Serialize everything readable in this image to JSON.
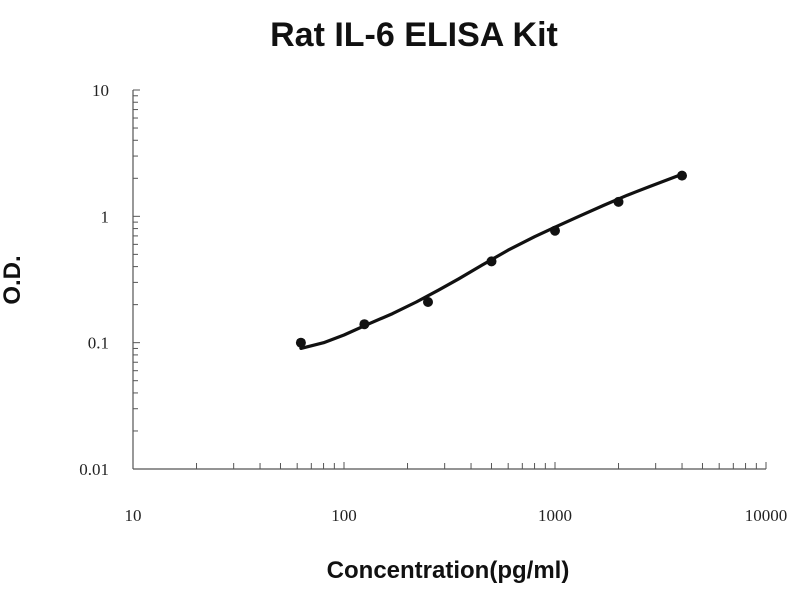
{
  "chart_data": {
    "type": "scatter",
    "title": "Rat IL-6 ELISA Kit",
    "xlabel": "Concentration(pg/ml)",
    "ylabel": "O.D.",
    "x_scale": "log",
    "y_scale": "log",
    "xlim": [
      10,
      10000
    ],
    "ylim": [
      0.01,
      10
    ],
    "x_ticks": [
      "10",
      "100",
      "1000",
      "10000"
    ],
    "y_ticks": [
      "10",
      "1",
      "0.1",
      "0.01"
    ],
    "grid": false,
    "legend": "none",
    "series": [
      {
        "x": [
          62.5,
          125,
          250,
          500,
          1000,
          2000,
          4000
        ],
        "y": [
          0.1,
          0.14,
          0.21,
          0.44,
          0.77,
          1.3,
          2.1
        ]
      }
    ],
    "fit_curve": {
      "x": [
        62.5,
        80,
        100,
        130,
        170,
        220,
        280,
        350,
        450,
        600,
        800,
        1000,
        1300,
        1700,
        2200,
        2800,
        3500,
        4000
      ],
      "y": [
        0.09,
        0.1,
        0.115,
        0.14,
        0.17,
        0.21,
        0.26,
        0.32,
        0.41,
        0.54,
        0.69,
        0.82,
        1.0,
        1.22,
        1.47,
        1.72,
        1.98,
        2.15
      ]
    },
    "colors": {
      "marker": "#111111",
      "line": "#111111",
      "axis": "#555555"
    }
  }
}
